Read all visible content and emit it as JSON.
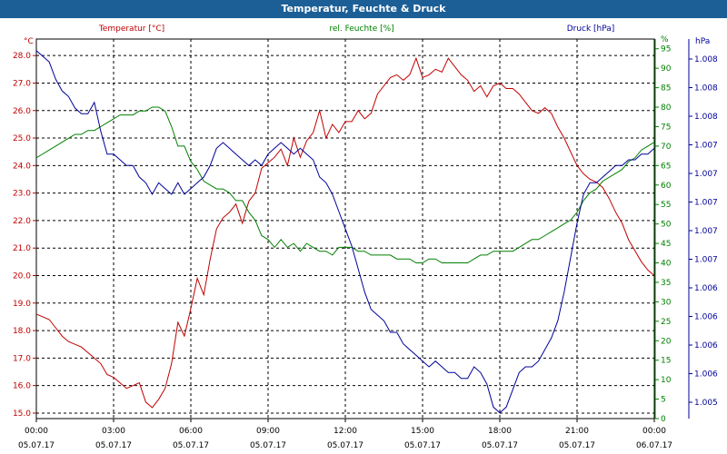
{
  "window": {
    "title": "Temperatur, Feuchte & Druck"
  },
  "chart_data": {
    "type": "line",
    "title": "Temperatur, Feuchte & Druck",
    "colors": {
      "temperature": "#c00000",
      "humidity": "#008000",
      "pressure": "#000099",
      "grid": "#000000",
      "plot_border": "#000000"
    },
    "grid": true,
    "x_ticks": [
      {
        "time": "00:00",
        "date": "05.07.17"
      },
      {
        "time": "03:00",
        "date": "05.07.17"
      },
      {
        "time": "06:00",
        "date": "05.07.17"
      },
      {
        "time": "09:00",
        "date": "05.07.17"
      },
      {
        "time": "12:00",
        "date": "05.07.17"
      },
      {
        "time": "15:00",
        "date": "05.07.17"
      },
      {
        "time": "18:00",
        "date": "05.07.17"
      },
      {
        "time": "21:00",
        "date": "05.07.17"
      },
      {
        "time": "00:00",
        "date": "06.07.17"
      }
    ],
    "axes": {
      "left": {
        "unit": "°C",
        "ylim": [
          14.8,
          28.6
        ],
        "ticks": [
          "15.0",
          "16.0",
          "17.0",
          "18.0",
          "19.0",
          "20.0",
          "21.0",
          "22.0",
          "23.0",
          "24.0",
          "25.0",
          "26.0",
          "27.0",
          "28.0"
        ]
      },
      "middle": {
        "unit": "%",
        "ylim": [
          0,
          97.5
        ],
        "ticks": [
          "0",
          "5",
          "10",
          "15",
          "20",
          "25",
          "30",
          "35",
          "40",
          "45",
          "50",
          "55",
          "60",
          "65",
          "70",
          "75",
          "80",
          "85",
          "90",
          "95",
          "%"
        ]
      },
      "right": {
        "unit": "hPa",
        "ylim": [
          1004.9,
          1008.2
        ],
        "ticks": [
          "1.005",
          "1.006",
          "1.006",
          "1.006",
          "1.006",
          "1.007",
          "1.007",
          "1.007",
          "1.007",
          "1.007",
          "1.008",
          "1.008",
          "1.008"
        ]
      }
    },
    "series": [
      {
        "name": "Temperatur [°C]",
        "axis": "left",
        "x": [
          0,
          0.25,
          0.5,
          0.75,
          1.0,
          1.25,
          1.5,
          1.75,
          2.0,
          2.25,
          2.5,
          2.75,
          3.0,
          3.25,
          3.5,
          3.75,
          4.0,
          4.25,
          4.5,
          4.75,
          5.0,
          5.25,
          5.5,
          5.75,
          6.0,
          6.25,
          6.5,
          6.75,
          7.0,
          7.25,
          7.5,
          7.75,
          8.0,
          8.25,
          8.5,
          8.75,
          9.0,
          9.25,
          9.5,
          9.75,
          10.0,
          10.25,
          10.5,
          10.75,
          11.0,
          11.25,
          11.5,
          11.75,
          12.0,
          12.25,
          12.5,
          12.75,
          13.0,
          13.25,
          13.5,
          13.75,
          14.0,
          14.25,
          14.5,
          14.75,
          15.0,
          15.25,
          15.5,
          15.75,
          16.0,
          16.25,
          16.5,
          16.75,
          17.0,
          17.25,
          17.5,
          17.75,
          18.0,
          18.25,
          18.5,
          18.75,
          19.0,
          19.25,
          19.5,
          19.75,
          20.0,
          20.25,
          20.5,
          20.75,
          21.0,
          21.25,
          21.5,
          21.75,
          22.0,
          22.25,
          22.5,
          22.75,
          23.0,
          23.25,
          23.5,
          23.75,
          24.0
        ],
        "values": [
          18.6,
          18.5,
          18.4,
          18.1,
          17.8,
          17.6,
          17.5,
          17.4,
          17.2,
          17.0,
          16.8,
          16.4,
          16.3,
          16.1,
          15.9,
          16.0,
          16.1,
          15.4,
          15.2,
          15.5,
          15.9,
          16.8,
          18.3,
          17.8,
          18.8,
          19.9,
          19.3,
          20.6,
          21.7,
          22.1,
          22.3,
          22.6,
          21.9,
          22.7,
          23.0,
          23.9,
          24.1,
          24.3,
          24.6,
          24.0,
          25.0,
          24.3,
          24.9,
          25.2,
          26.0,
          25.0,
          25.5,
          25.2,
          25.6,
          25.6,
          26.0,
          25.7,
          25.9,
          26.6,
          26.9,
          27.2,
          27.3,
          27.1,
          27.3,
          27.9,
          27.2,
          27.3,
          27.5,
          27.4,
          27.9,
          27.6,
          27.3,
          27.1,
          26.7,
          26.9,
          26.5,
          26.9,
          27.0,
          26.8,
          26.8,
          26.6,
          26.3,
          26.0,
          25.9,
          26.1,
          25.9,
          25.4,
          25.0,
          24.5,
          24.0,
          23.7,
          23.5,
          23.4,
          23.2,
          22.8,
          22.3,
          21.9,
          21.3,
          20.9,
          20.5,
          20.2,
          20.0
        ]
      },
      {
        "name": "rel. Feuchte [%]",
        "axis": "middle",
        "x": [
          0,
          0.25,
          0.5,
          0.75,
          1.0,
          1.25,
          1.5,
          1.75,
          2.0,
          2.25,
          2.5,
          2.75,
          3.0,
          3.25,
          3.5,
          3.75,
          4.0,
          4.25,
          4.5,
          4.75,
          5.0,
          5.25,
          5.5,
          5.75,
          6.0,
          6.25,
          6.5,
          6.75,
          7.0,
          7.25,
          7.5,
          7.75,
          8.0,
          8.25,
          8.5,
          8.75,
          9.0,
          9.25,
          9.5,
          9.75,
          10.0,
          10.25,
          10.5,
          10.75,
          11.0,
          11.25,
          11.5,
          11.75,
          12.0,
          12.25,
          12.5,
          12.75,
          13.0,
          13.25,
          13.5,
          13.75,
          14.0,
          14.25,
          14.5,
          14.75,
          15.0,
          15.25,
          15.5,
          15.75,
          16.0,
          16.25,
          16.5,
          16.75,
          17.0,
          17.25,
          17.5,
          17.75,
          18.0,
          18.25,
          18.5,
          18.75,
          19.0,
          19.25,
          19.5,
          19.75,
          20.0,
          20.25,
          20.5,
          20.75,
          21.0,
          21.25,
          21.5,
          21.75,
          22.0,
          22.25,
          22.5,
          22.75,
          23.0,
          23.25,
          23.5,
          23.75,
          24.0
        ],
        "values": [
          67,
          68,
          69,
          70,
          71,
          72,
          73,
          73,
          74,
          74,
          75,
          76,
          77,
          78,
          78,
          78,
          79,
          79,
          80,
          80,
          79,
          75,
          70,
          70,
          66,
          64,
          61,
          60,
          59,
          59,
          58,
          56,
          56,
          53,
          51,
          47,
          46,
          44,
          46,
          44,
          45,
          43,
          45,
          44,
          43,
          43,
          42,
          44,
          44,
          44,
          43,
          43,
          42,
          42,
          42,
          42,
          41,
          41,
          41,
          40,
          40,
          41,
          41,
          40,
          40,
          40,
          40,
          40,
          41,
          42,
          42,
          43,
          43,
          43,
          43,
          44,
          45,
          46,
          46,
          47,
          48,
          49,
          50,
          51,
          53,
          56,
          58,
          59,
          61,
          62,
          63,
          64,
          66,
          67,
          69,
          70,
          71
        ]
      },
      {
        "name": "Druck [hPa]",
        "axis": "right",
        "x": [
          0,
          0.25,
          0.5,
          0.75,
          1.0,
          1.25,
          1.5,
          1.75,
          2.0,
          2.25,
          2.5,
          2.75,
          3.0,
          3.25,
          3.5,
          3.75,
          4.0,
          4.25,
          4.5,
          4.75,
          5.0,
          5.25,
          5.5,
          5.75,
          6.0,
          6.25,
          6.5,
          6.75,
          7.0,
          7.25,
          7.5,
          7.75,
          8.0,
          8.25,
          8.5,
          8.75,
          9.0,
          9.25,
          9.5,
          9.75,
          10.0,
          10.25,
          10.5,
          10.75,
          11.0,
          11.25,
          11.5,
          11.75,
          12.0,
          12.25,
          12.5,
          12.75,
          13.0,
          13.25,
          13.5,
          13.75,
          14.0,
          14.25,
          14.5,
          14.75,
          15.0,
          15.25,
          15.5,
          15.75,
          16.0,
          16.25,
          16.5,
          16.75,
          17.0,
          17.25,
          17.5,
          17.75,
          18.0,
          18.25,
          18.5,
          18.75,
          19.0,
          19.25,
          19.5,
          19.75,
          20.0,
          20.25,
          20.5,
          20.75,
          21.0,
          21.25,
          21.5,
          21.75,
          22.0,
          22.25,
          22.5,
          22.75,
          23.0,
          23.25,
          23.5,
          23.75,
          24.0
        ],
        "values": [
          1008.1,
          1008.05,
          1008.0,
          1007.85,
          1007.75,
          1007.7,
          1007.6,
          1007.55,
          1007.55,
          1007.65,
          1007.4,
          1007.2,
          1007.2,
          1007.15,
          1007.1,
          1007.1,
          1007.0,
          1006.95,
          1006.85,
          1006.95,
          1006.9,
          1006.85,
          1006.95,
          1006.85,
          1006.9,
          1006.95,
          1007.0,
          1007.1,
          1007.25,
          1007.3,
          1007.25,
          1007.2,
          1007.15,
          1007.1,
          1007.15,
          1007.1,
          1007.2,
          1007.25,
          1007.3,
          1007.25,
          1007.2,
          1007.25,
          1007.2,
          1007.15,
          1007.0,
          1006.95,
          1006.85,
          1006.7,
          1006.55,
          1006.4,
          1006.2,
          1006.0,
          1005.85,
          1005.8,
          1005.75,
          1005.65,
          1005.65,
          1005.55,
          1005.5,
          1005.45,
          1005.4,
          1005.35,
          1005.4,
          1005.35,
          1005.3,
          1005.3,
          1005.25,
          1005.25,
          1005.35,
          1005.3,
          1005.2,
          1005.0,
          1004.95,
          1005.0,
          1005.15,
          1005.3,
          1005.35,
          1005.35,
          1005.4,
          1005.5,
          1005.6,
          1005.75,
          1006.0,
          1006.3,
          1006.6,
          1006.85,
          1006.95,
          1006.95,
          1007.0,
          1007.05,
          1007.1,
          1007.1,
          1007.15,
          1007.15,
          1007.2,
          1007.2,
          1007.25
        ]
      }
    ],
    "legend": [
      "Temperatur [°C]",
      "rel. Feuchte [%]",
      "Druck [hPa]"
    ]
  }
}
